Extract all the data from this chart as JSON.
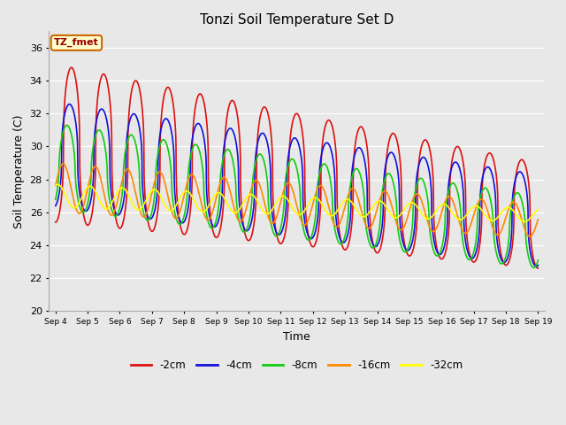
{
  "title": "Tonzi Soil Temperature Set D",
  "xlabel": "Time",
  "ylabel": "Soil Temperature (C)",
  "ylim": [
    20,
    37
  ],
  "yticks": [
    20,
    22,
    24,
    26,
    28,
    30,
    32,
    34,
    36
  ],
  "xtick_labels": [
    "Sep 4",
    "Sep 5",
    "Sep 6",
    "Sep 7",
    "Sep 8",
    "Sep 9",
    "Sep 10",
    "Sep 11",
    "Sep 12",
    "Sep 13",
    "Sep 14",
    "Sep 15",
    "Sep 16",
    "Sep 17",
    "Sep 18",
    "Sep 19"
  ],
  "series_colors": {
    "-2cm": "#dd1111",
    "-4cm": "#1111dd",
    "-8cm": "#11cc11",
    "-16cm": "#ff8800",
    "-32cm": "#ffff00"
  },
  "legend_label": "TZ_fmet",
  "bg_color": "#e8e8e8",
  "plot_bg_color": "#e8e8e8",
  "series_params": {
    "-2cm": {
      "amp_s": 4.8,
      "amp_e": 3.2,
      "tr_s": 30.2,
      "tr_e": 25.8,
      "phase": 0.0,
      "peak_sharpness": 2.5
    },
    "-4cm": {
      "amp_s": 3.2,
      "amp_e": 2.8,
      "tr_s": 29.5,
      "tr_e": 25.5,
      "phase": 0.12,
      "peak_sharpness": 2.5
    },
    "-8cm": {
      "amp_s": 2.6,
      "amp_e": 2.2,
      "tr_s": 28.8,
      "tr_e": 24.8,
      "phase": 0.28,
      "peak_sharpness": 1.8
    },
    "-16cm": {
      "amp_s": 1.5,
      "amp_e": 1.0,
      "tr_s": 27.5,
      "tr_e": 25.5,
      "phase": 0.52,
      "peak_sharpness": 1.0
    },
    "-32cm": {
      "amp_s": 0.7,
      "amp_e": 0.4,
      "tr_s": 27.0,
      "tr_e": 25.8,
      "phase": 0.85,
      "peak_sharpness": 1.0
    }
  }
}
